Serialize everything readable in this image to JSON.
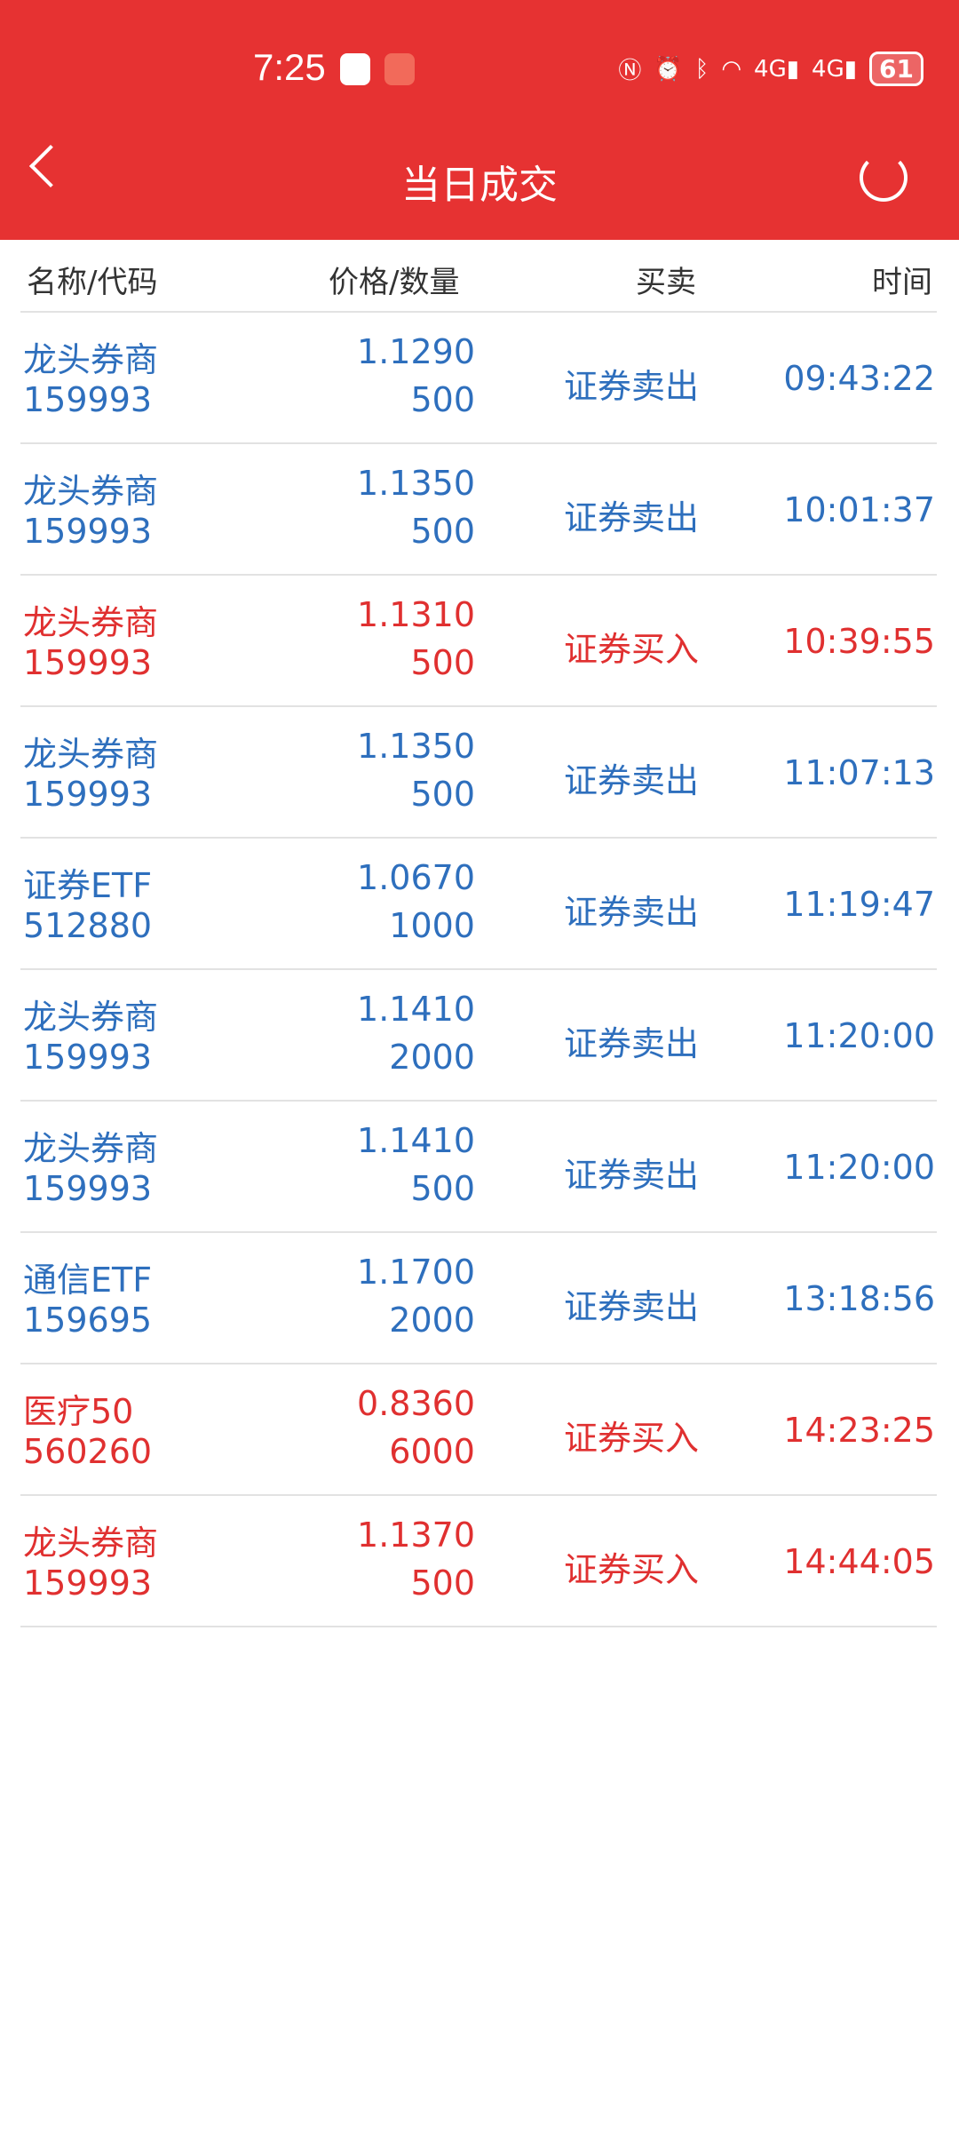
{
  "status_bar": {
    "time": "7:25",
    "battery": "61",
    "icons": [
      "nfc-icon",
      "alarm-icon",
      "bluetooth-icon",
      "wifi-icon",
      "signal-4g-icon",
      "signal-4g-icon",
      "battery-icon"
    ]
  },
  "header": {
    "title": "当日成交",
    "back_icon": "chevron-left-icon",
    "refresh_icon": "refresh-icon",
    "color": "#e63232"
  },
  "columns": {
    "name": "名称/代码",
    "price": "价格/数量",
    "side": "买卖",
    "time": "时间"
  },
  "colors": {
    "sell": "#2e6fbd",
    "buy": "#e03030"
  },
  "rows": [
    {
      "name": "龙头券商",
      "code": "159993",
      "price": "1.1290",
      "qty": "500",
      "side": "证券卖出",
      "time": "09:43:22",
      "type": "sell"
    },
    {
      "name": "龙头券商",
      "code": "159993",
      "price": "1.1350",
      "qty": "500",
      "side": "证券卖出",
      "time": "10:01:37",
      "type": "sell"
    },
    {
      "name": "龙头券商",
      "code": "159993",
      "price": "1.1310",
      "qty": "500",
      "side": "证券买入",
      "time": "10:39:55",
      "type": "buy"
    },
    {
      "name": "龙头券商",
      "code": "159993",
      "price": "1.1350",
      "qty": "500",
      "side": "证券卖出",
      "time": "11:07:13",
      "type": "sell"
    },
    {
      "name": "证券ETF",
      "code": "512880",
      "price": "1.0670",
      "qty": "1000",
      "side": "证券卖出",
      "time": "11:19:47",
      "type": "sell"
    },
    {
      "name": "龙头券商",
      "code": "159993",
      "price": "1.1410",
      "qty": "2000",
      "side": "证券卖出",
      "time": "11:20:00",
      "type": "sell"
    },
    {
      "name": "龙头券商",
      "code": "159993",
      "price": "1.1410",
      "qty": "500",
      "side": "证券卖出",
      "time": "11:20:00",
      "type": "sell"
    },
    {
      "name": "通信ETF",
      "code": "159695",
      "price": "1.1700",
      "qty": "2000",
      "side": "证券卖出",
      "time": "13:18:56",
      "type": "sell"
    },
    {
      "name": "医疗50",
      "code": "560260",
      "price": "0.8360",
      "qty": "6000",
      "side": "证券买入",
      "time": "14:23:25",
      "type": "buy"
    },
    {
      "name": "龙头券商",
      "code": "159993",
      "price": "1.1370",
      "qty": "500",
      "side": "证券买入",
      "time": "14:44:05",
      "type": "buy"
    }
  ]
}
